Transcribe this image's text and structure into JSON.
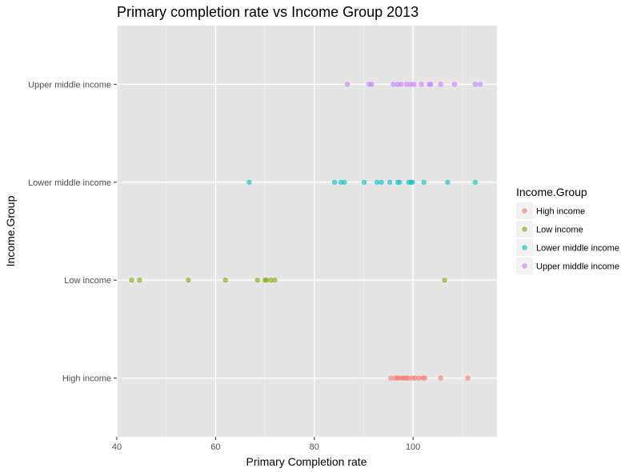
{
  "chart_data": {
    "type": "scatter",
    "title": "Primary completion rate vs Income Group 2013",
    "xlabel": "Primary Completion rate",
    "ylabel": "Income.Group",
    "xlim": [
      40,
      117
    ],
    "xticks": [
      40,
      60,
      80,
      100
    ],
    "grid": true,
    "legend": {
      "title": "Income.Group",
      "placement": "right"
    },
    "categories": [
      "High income",
      "Low income",
      "Lower middle income",
      "Upper middle income"
    ],
    "series": [
      {
        "name": "High income",
        "color": "#F8766D",
        "values": [
          95.5,
          96.3,
          96.8,
          97.2,
          97.8,
          98.2,
          98.6,
          99.0,
          99.8,
          100.4,
          101.2,
          102.0,
          102.4,
          105.6,
          111.1
        ]
      },
      {
        "name": "Low income",
        "color": "#7CAE00",
        "values": [
          43.0,
          44.6,
          54.5,
          62.0,
          68.5,
          70.0,
          70.3,
          71.2,
          72.0,
          106.4
        ]
      },
      {
        "name": "Lower middle income",
        "color": "#00BFC4",
        "values": [
          66.8,
          84.1,
          85.4,
          86.1,
          90.1,
          92.7,
          93.6,
          95.3,
          96.9,
          97.3,
          99.1,
          99.6,
          99.9,
          102.2,
          107.0,
          112.6
        ]
      },
      {
        "name": "Upper middle income",
        "color": "#C77CFF",
        "values": [
          86.7,
          91.1,
          91.6,
          96.0,
          96.9,
          97.6,
          98.7,
          99.5,
          100.2,
          101.7,
          103.3,
          103.6,
          105.6,
          108.4,
          112.6,
          113.6
        ]
      }
    ]
  }
}
